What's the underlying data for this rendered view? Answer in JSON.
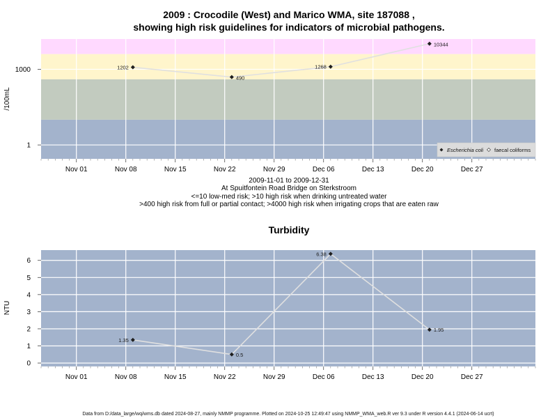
{
  "chart_data": [
    {
      "type": "line",
      "title_line1": "2009 : Crocodile (West) and Marico WMA, site 187088 ,",
      "title_line2": "showing high risk guidelines for indicators of microbial pathogens.",
      "ylabel": "/100mL",
      "yscale": "log10",
      "y_ticks": [
        {
          "value": 1,
          "label": "1"
        },
        {
          "value": 1000,
          "label": "1000"
        }
      ],
      "x_ticks": [
        {
          "date": "2009-11-01",
          "label": "Nov 01"
        },
        {
          "date": "2009-11-08",
          "label": "Nov 08"
        },
        {
          "date": "2009-11-15",
          "label": "Nov 15"
        },
        {
          "date": "2009-11-22",
          "label": "Nov 22"
        },
        {
          "date": "2009-11-29",
          "label": "Nov 29"
        },
        {
          "date": "2009-12-06",
          "label": "Dec 06"
        },
        {
          "date": "2009-12-13",
          "label": "Dec 13"
        },
        {
          "date": "2009-12-20",
          "label": "Dec 20"
        },
        {
          "date": "2009-12-27",
          "label": "Dec 27"
        }
      ],
      "bands": [
        {
          "from": 4000,
          "to": null,
          "color": "#ffd9ff"
        },
        {
          "from": 400,
          "to": 4000,
          "color": "#fff5cc"
        },
        {
          "from": 10,
          "to": 400,
          "color": "#c2cbbf"
        },
        {
          "from": null,
          "to": 10,
          "color": "#a3b3cc"
        }
      ],
      "series": [
        {
          "name": "Escherichia coli",
          "points": [
            {
              "date": "2009-11-09",
              "value": 1202,
              "label": "1202"
            },
            {
              "date": "2009-11-23",
              "value": 490,
              "label": "490"
            },
            {
              "date": "2009-12-07",
              "value": 1268,
              "label": "1268"
            },
            {
              "date": "2009-12-21",
              "value": 10344,
              "label": "10344"
            }
          ]
        }
      ],
      "legend": {
        "placement": "bottom-right",
        "entries": [
          {
            "name": "Escherichia coli"
          },
          {
            "name": "faecal coliforms"
          }
        ]
      },
      "caption_lines": [
        "2009-11-01 to 2009-12-31",
        "At Spuitfontein Road Bridge on Sterkstroom",
        "<=10 low-med risk; >10 high risk when drinking untreated water",
        ">400 high risk from full or partial contact; >4000 high risk when irrigating crops that are eaten raw"
      ]
    },
    {
      "type": "line",
      "title": "Turbidity",
      "ylabel": "NTU",
      "ylim": [
        -0.2,
        6.6
      ],
      "y_ticks": [
        0,
        1,
        2,
        3,
        4,
        5,
        6
      ],
      "x_ticks": [
        {
          "date": "2009-11-01",
          "label": "Nov 01"
        },
        {
          "date": "2009-11-08",
          "label": "Nov 08"
        },
        {
          "date": "2009-11-15",
          "label": "Nov 15"
        },
        {
          "date": "2009-11-22",
          "label": "Nov 22"
        },
        {
          "date": "2009-11-29",
          "label": "Nov 29"
        },
        {
          "date": "2009-12-06",
          "label": "Dec 06"
        },
        {
          "date": "2009-12-13",
          "label": "Dec 13"
        },
        {
          "date": "2009-12-20",
          "label": "Dec 20"
        },
        {
          "date": "2009-12-27",
          "label": "Dec 27"
        }
      ],
      "background_color": "#a3b3cc",
      "series": [
        {
          "points": [
            {
              "date": "2009-11-09",
              "value": 1.35,
              "label": "1.35"
            },
            {
              "date": "2009-11-23",
              "value": 0.5,
              "label": "0.5"
            },
            {
              "date": "2009-12-07",
              "value": 6.38,
              "label": "6.38"
            },
            {
              "date": "2009-12-21",
              "value": 1.95,
              "label": "1.95"
            }
          ]
        }
      ]
    }
  ],
  "footer": "Data from D:/data_large/wq/wms.db dated 2024-08-27, mainly NMMP programme. Plotted on 2024-10-25 12:49:47 using NMMP_WMA_web.R ver 9.3 under R version 4.4.1 (2024-06-14 ucrt)"
}
